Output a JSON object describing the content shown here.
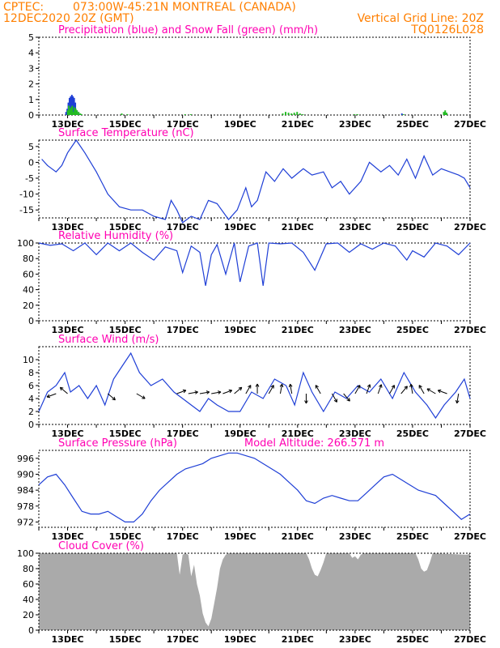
{
  "header": {
    "source": "CPTEC:",
    "location": "073:00W-45:21N  MONTREAL (CANADA)",
    "run": "12DEC2020 20Z (GMT)",
    "grid_note": "Vertical Grid Line: 20Z",
    "model_code": "TQ0126L028"
  },
  "colors": {
    "header": "#ff7f00",
    "title": "#ff00b2",
    "line": "#1f3fd6",
    "snow": "#22bb22",
    "cloud": "#aaaaaa"
  },
  "chart_data": [
    {
      "id": "precip",
      "type": "bar",
      "title": "Precipitation (blue) and Snow Fall (green) (mm/h)",
      "xlabels": [
        "13DEC",
        "15DEC",
        "17DEC",
        "19DEC",
        "21DEC",
        "23DEC",
        "25DEC",
        "27DEC"
      ],
      "ylim": [
        0,
        5
      ],
      "yticks": [
        0,
        1,
        2,
        3,
        4,
        5
      ],
      "x": [
        12.92,
        12.96,
        13.0,
        13.04,
        13.08,
        13.12,
        13.16,
        13.2,
        13.24,
        13.3,
        13.36,
        13.4,
        14.8,
        15.0,
        17.0,
        17.2,
        20.4,
        20.5,
        20.6,
        20.7,
        20.8,
        20.9,
        21.0,
        21.1,
        22.9,
        23.0,
        24.6,
        26.0,
        26.05,
        26.1
      ],
      "series": [
        {
          "name": "precip",
          "values": [
            0.2,
            0.4,
            0.8,
            1.1,
            1.2,
            1.3,
            1.2,
            1.1,
            0.8,
            0.3,
            0.1,
            0.05,
            0,
            0,
            0,
            0,
            0,
            0,
            0,
            0,
            0,
            0,
            0,
            0,
            0,
            0,
            0.1,
            0,
            0,
            0
          ]
        },
        {
          "name": "snow",
          "values": [
            0.3,
            0.6,
            0.4,
            0.5,
            0.6,
            0.2,
            0.5,
            0.4,
            0.3,
            0.2,
            0.1,
            0.05,
            0.1,
            0.05,
            0.05,
            0.05,
            0.1,
            0.2,
            0.15,
            0.1,
            0.15,
            0.2,
            0.1,
            0.05,
            0.05,
            0.05,
            0.05,
            0.2,
            0.3,
            0.15
          ]
        }
      ]
    },
    {
      "id": "temp",
      "type": "line",
      "title": "Surface Temperature (nC)",
      "xlabels": [
        "13DEC",
        "15DEC",
        "17DEC",
        "19DEC",
        "21DEC",
        "23DEC",
        "25DEC",
        "27DEC"
      ],
      "ylim": [
        -17.5,
        7
      ],
      "yticks": [
        -15,
        -10,
        -5,
        0,
        5
      ],
      "x": [
        12.1,
        12.3,
        12.6,
        12.8,
        13.0,
        13.3,
        13.6,
        14.0,
        14.4,
        14.8,
        15.2,
        15.6,
        16.0,
        16.4,
        16.6,
        16.8,
        17.0,
        17.3,
        17.6,
        17.9,
        18.2,
        18.6,
        18.9,
        19.2,
        19.4,
        19.6,
        19.9,
        20.2,
        20.5,
        20.8,
        21.2,
        21.5,
        21.9,
        22.2,
        22.5,
        22.8,
        23.2,
        23.5,
        23.9,
        24.2,
        24.5,
        24.8,
        25.1,
        25.4,
        25.7,
        26.0,
        26.3,
        26.6,
        26.8,
        27.0
      ],
      "values": [
        1,
        -1,
        -3,
        -1,
        3,
        7,
        3,
        -3,
        -10,
        -14,
        -15,
        -15,
        -17,
        -18,
        -12,
        -15,
        -19,
        -17,
        -18,
        -12,
        -13,
        -18,
        -15,
        -8,
        -14,
        -12,
        -3,
        -6,
        -2,
        -5,
        -2,
        -4,
        -3,
        -8,
        -6,
        -10,
        -6,
        0,
        -3,
        -1,
        -4,
        1,
        -5,
        2,
        -4,
        -2,
        -3,
        -4,
        -5,
        -8
      ]
    },
    {
      "id": "rh",
      "type": "line",
      "title": "Relative Humidity (%)",
      "xlabels": [
        "13DEC",
        "15DEC",
        "17DEC",
        "19DEC",
        "21DEC",
        "23DEC",
        "25DEC",
        "27DEC"
      ],
      "ylim": [
        0,
        100
      ],
      "yticks": [
        0,
        20,
        40,
        60,
        80,
        100
      ],
      "x": [
        12.0,
        12.4,
        12.8,
        13.2,
        13.6,
        14.0,
        14.4,
        14.8,
        15.2,
        15.6,
        16.0,
        16.4,
        16.8,
        17.0,
        17.3,
        17.6,
        17.8,
        18.0,
        18.2,
        18.5,
        18.8,
        19.0,
        19.3,
        19.6,
        19.8,
        20.0,
        20.4,
        20.8,
        21.2,
        21.6,
        22.0,
        22.4,
        22.8,
        23.2,
        23.6,
        24.0,
        24.4,
        24.8,
        25.0,
        25.4,
        25.8,
        26.2,
        26.6,
        27.0
      ],
      "values": [
        100,
        97,
        99,
        90,
        100,
        85,
        100,
        90,
        100,
        88,
        78,
        95,
        90,
        62,
        96,
        88,
        45,
        85,
        98,
        60,
        100,
        50,
        96,
        100,
        45,
        100,
        99,
        100,
        88,
        65,
        99,
        100,
        88,
        99,
        92,
        100,
        96,
        78,
        90,
        82,
        100,
        96,
        85,
        100
      ]
    },
    {
      "id": "wind",
      "type": "line",
      "title": "Surface Wind (m/s)",
      "xlabels": [
        "13DEC",
        "15DEC",
        "17DEC",
        "19DEC",
        "21DEC",
        "23DEC",
        "25DEC",
        "27DEC"
      ],
      "ylim": [
        0,
        12
      ],
      "yticks": [
        0,
        2,
        4,
        6,
        8,
        10
      ],
      "x": [
        12.0,
        12.3,
        12.6,
        12.9,
        13.1,
        13.4,
        13.7,
        14.0,
        14.3,
        14.6,
        14.9,
        15.2,
        15.5,
        15.9,
        16.3,
        16.7,
        17.0,
        17.3,
        17.6,
        17.9,
        18.2,
        18.6,
        19.0,
        19.4,
        19.8,
        20.2,
        20.6,
        20.9,
        21.2,
        21.5,
        21.9,
        22.3,
        22.7,
        23.1,
        23.5,
        23.9,
        24.3,
        24.7,
        25.1,
        25.5,
        25.8,
        26.1,
        26.5,
        26.8,
        27.0
      ],
      "values": [
        2,
        5,
        6,
        8,
        5,
        6,
        4,
        6,
        3,
        7,
        9,
        11,
        8,
        6,
        7,
        5,
        4,
        3,
        2,
        4,
        3,
        2,
        2,
        5,
        4,
        7,
        6,
        3,
        8,
        5,
        2,
        5,
        4,
        6,
        5,
        7,
        4,
        8,
        5,
        3,
        1,
        3,
        5,
        7,
        4
      ],
      "arrows": [
        {
          "x": 12.6,
          "dir": 160
        },
        {
          "x": 13.0,
          "dir": -140
        },
        {
          "x": 14.4,
          "dir": 40
        },
        {
          "x": 15.4,
          "dir": 30
        },
        {
          "x": 16.8,
          "dir": -20
        },
        {
          "x": 17.2,
          "dir": -10
        },
        {
          "x": 17.6,
          "dir": -10
        },
        {
          "x": 18.0,
          "dir": -10
        },
        {
          "x": 18.4,
          "dir": -20
        },
        {
          "x": 18.8,
          "dir": -40
        },
        {
          "x": 19.2,
          "dir": -60
        },
        {
          "x": 19.6,
          "dir": -90
        },
        {
          "x": 20.0,
          "dir": -60
        },
        {
          "x": 20.4,
          "dir": -80
        },
        {
          "x": 20.8,
          "dir": -100
        },
        {
          "x": 21.3,
          "dir": 90
        },
        {
          "x": 21.8,
          "dir": -120
        },
        {
          "x": 22.2,
          "dir": 60
        },
        {
          "x": 22.6,
          "dir": 50
        },
        {
          "x": 23.0,
          "dir": -60
        },
        {
          "x": 23.4,
          "dir": -70
        },
        {
          "x": 23.8,
          "dir": -70
        },
        {
          "x": 24.2,
          "dir": -60
        },
        {
          "x": 24.6,
          "dir": -50
        },
        {
          "x": 25.0,
          "dir": -100
        },
        {
          "x": 25.4,
          "dir": -120
        },
        {
          "x": 25.8,
          "dir": -150
        },
        {
          "x": 26.2,
          "dir": -160
        },
        {
          "x": 26.6,
          "dir": 100
        }
      ]
    },
    {
      "id": "pressure",
      "type": "line",
      "title": "Surface Pressure (hPa)",
      "annotation": "Model Altitude: 266.571 m",
      "xlabels": [
        "13DEC",
        "15DEC",
        "17DEC",
        "19DEC",
        "21DEC",
        "23DEC",
        "25DEC",
        "27DEC"
      ],
      "ylim": [
        970,
        999
      ],
      "yticks": [
        972,
        978,
        984,
        990,
        996
      ],
      "x": [
        12.0,
        12.3,
        12.6,
        12.9,
        13.2,
        13.5,
        13.8,
        14.1,
        14.4,
        14.7,
        15.0,
        15.3,
        15.6,
        15.9,
        16.2,
        16.5,
        16.8,
        17.1,
        17.4,
        17.7,
        18.0,
        18.3,
        18.6,
        18.9,
        19.2,
        19.5,
        19.8,
        20.1,
        20.4,
        20.7,
        21.0,
        21.3,
        21.6,
        21.9,
        22.2,
        22.5,
        22.8,
        23.1,
        23.4,
        23.7,
        24.0,
        24.3,
        24.6,
        24.9,
        25.2,
        25.5,
        25.8,
        26.1,
        26.4,
        26.7,
        27.0
      ],
      "values": [
        986,
        989,
        990,
        986,
        981,
        976,
        975,
        975,
        976,
        974,
        972,
        972,
        975,
        980,
        984,
        987,
        990,
        992,
        993,
        994,
        996,
        997,
        998,
        998,
        997,
        996,
        994,
        992,
        990,
        987,
        984,
        980,
        979,
        981,
        982,
        981,
        980,
        980,
        983,
        986,
        989,
        990,
        988,
        986,
        984,
        983,
        982,
        979,
        976,
        973,
        975
      ]
    },
    {
      "id": "cloud",
      "type": "area",
      "title": "Cloud Cover (%)",
      "xlabels": [
        "13DEC",
        "15DEC",
        "17DEC",
        "19DEC",
        "21DEC",
        "23DEC",
        "25DEC",
        "27DEC"
      ],
      "ylim": [
        0,
        100
      ],
      "yticks": [
        0,
        20,
        40,
        60,
        80,
        100
      ],
      "x": [
        12.0,
        16.8,
        16.9,
        17.0,
        17.1,
        17.2,
        17.3,
        17.4,
        17.5,
        17.6,
        17.7,
        17.8,
        17.9,
        18.0,
        18.1,
        18.2,
        18.3,
        18.4,
        18.5,
        18.6,
        21.3,
        21.4,
        21.5,
        21.6,
        21.7,
        21.8,
        21.9,
        22.0,
        22.8,
        22.9,
        23.0,
        23.1,
        23.2,
        23.3,
        25.1,
        25.2,
        25.3,
        25.4,
        25.5,
        25.6,
        25.7,
        26.9,
        27.0
      ],
      "values": [
        100,
        100,
        72,
        98,
        100,
        98,
        70,
        85,
        60,
        45,
        22,
        10,
        5,
        15,
        35,
        55,
        80,
        92,
        98,
        100,
        100,
        92,
        80,
        72,
        70,
        78,
        88,
        100,
        100,
        94,
        96,
        92,
        98,
        100,
        100,
        92,
        80,
        76,
        78,
        88,
        100,
        98,
        100
      ]
    }
  ]
}
